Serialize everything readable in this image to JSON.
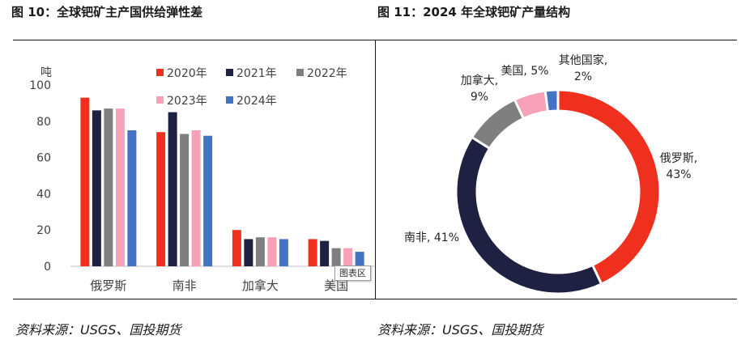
{
  "figures": {
    "left_title": "图 10：全球钯矿主产国供给弹性差",
    "right_title": "图 11：2024 年全球钯矿产量结构",
    "left_source": "资料来源：USGS、国投期货",
    "right_source": "资料来源：USGS、国投期货"
  },
  "tooltip": {
    "label": "图表区"
  },
  "colors": {
    "s2020": "#f0301e",
    "s2021": "#1f2142",
    "s2022": "#7f7f7f",
    "s2023": "#f7a1b8",
    "s2024": "#4472c4",
    "pie_russia": "#f0301e",
    "pie_sa": "#1f2142",
    "pie_canada": "#7f7f7f",
    "pie_us": "#f7a1b8",
    "pie_other": "#4472c4"
  },
  "chart_data": [
    {
      "type": "bar",
      "title": "全球钯矿主产国供给弹性差",
      "ylabel": "吨",
      "ylim": [
        0,
        100
      ],
      "yticks": [
        0,
        20,
        40,
        60,
        80,
        100
      ],
      "categories": [
        "俄罗斯",
        "南非",
        "加拿大",
        "美国"
      ],
      "series": [
        {
          "name": "2020年",
          "values": [
            93,
            74,
            20,
            15
          ]
        },
        {
          "name": "2021年",
          "values": [
            86,
            85,
            15,
            14
          ]
        },
        {
          "name": "2022年",
          "values": [
            87,
            73,
            16,
            10
          ]
        },
        {
          "name": "2023年",
          "values": [
            87,
            75,
            16,
            10
          ]
        },
        {
          "name": "2024年",
          "values": [
            75,
            72,
            15,
            8
          ]
        }
      ],
      "legend": "top"
    },
    {
      "type": "pie",
      "title": "2024 年全球钯矿产量结构",
      "slices": [
        {
          "name": "俄罗斯",
          "value": 43,
          "label_line1": "俄罗斯,",
          "label_line2": "43%"
        },
        {
          "name": "南非",
          "value": 41,
          "label_line1": "南非, 41%",
          "label_line2": ""
        },
        {
          "name": "加拿大",
          "value": 9,
          "label_line1": "加拿大,",
          "label_line2": "9%"
        },
        {
          "name": "美国",
          "value": 5,
          "label_line1": "美国, 5%",
          "label_line2": ""
        },
        {
          "name": "其他国家",
          "value": 2,
          "label_line1": "其他国家,",
          "label_line2": "2%"
        }
      ]
    }
  ]
}
